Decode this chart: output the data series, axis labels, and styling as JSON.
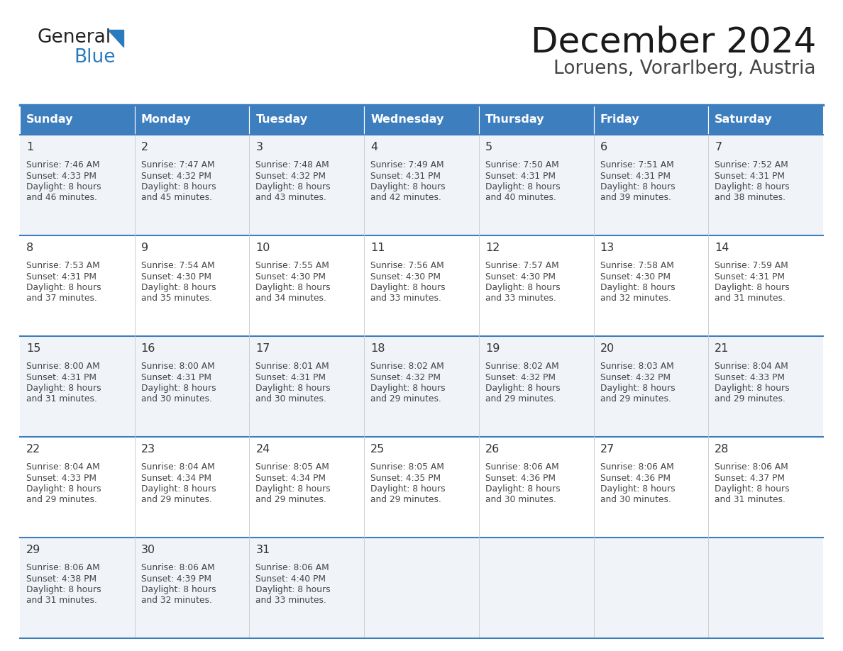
{
  "title": "December 2024",
  "subtitle": "Loruens, Vorarlberg, Austria",
  "header_bg": "#3d7ebf",
  "header_text": "#ffffff",
  "day_names": [
    "Sunday",
    "Monday",
    "Tuesday",
    "Wednesday",
    "Thursday",
    "Friday",
    "Saturday"
  ],
  "row_bg_light": "#f0f4f8",
  "row_bg_white": "#ffffff",
  "cell_border_color": "#3d7ebf",
  "text_color": "#444444",
  "logo_general_color": "#222222",
  "logo_blue_color": "#2a7abf",
  "weeks": [
    [
      {
        "day": 1,
        "sunrise": "7:46 AM",
        "sunset": "4:33 PM",
        "daylight": "8 hours and 46 minutes."
      },
      {
        "day": 2,
        "sunrise": "7:47 AM",
        "sunset": "4:32 PM",
        "daylight": "8 hours and 45 minutes."
      },
      {
        "day": 3,
        "sunrise": "7:48 AM",
        "sunset": "4:32 PM",
        "daylight": "8 hours and 43 minutes."
      },
      {
        "day": 4,
        "sunrise": "7:49 AM",
        "sunset": "4:31 PM",
        "daylight": "8 hours and 42 minutes."
      },
      {
        "day": 5,
        "sunrise": "7:50 AM",
        "sunset": "4:31 PM",
        "daylight": "8 hours and 40 minutes."
      },
      {
        "day": 6,
        "sunrise": "7:51 AM",
        "sunset": "4:31 PM",
        "daylight": "8 hours and 39 minutes."
      },
      {
        "day": 7,
        "sunrise": "7:52 AM",
        "sunset": "4:31 PM",
        "daylight": "8 hours and 38 minutes."
      }
    ],
    [
      {
        "day": 8,
        "sunrise": "7:53 AM",
        "sunset": "4:31 PM",
        "daylight": "8 hours and 37 minutes."
      },
      {
        "day": 9,
        "sunrise": "7:54 AM",
        "sunset": "4:30 PM",
        "daylight": "8 hours and 35 minutes."
      },
      {
        "day": 10,
        "sunrise": "7:55 AM",
        "sunset": "4:30 PM",
        "daylight": "8 hours and 34 minutes."
      },
      {
        "day": 11,
        "sunrise": "7:56 AM",
        "sunset": "4:30 PM",
        "daylight": "8 hours and 33 minutes."
      },
      {
        "day": 12,
        "sunrise": "7:57 AM",
        "sunset": "4:30 PM",
        "daylight": "8 hours and 33 minutes."
      },
      {
        "day": 13,
        "sunrise": "7:58 AM",
        "sunset": "4:30 PM",
        "daylight": "8 hours and 32 minutes."
      },
      {
        "day": 14,
        "sunrise": "7:59 AM",
        "sunset": "4:31 PM",
        "daylight": "8 hours and 31 minutes."
      }
    ],
    [
      {
        "day": 15,
        "sunrise": "8:00 AM",
        "sunset": "4:31 PM",
        "daylight": "8 hours and 31 minutes."
      },
      {
        "day": 16,
        "sunrise": "8:00 AM",
        "sunset": "4:31 PM",
        "daylight": "8 hours and 30 minutes."
      },
      {
        "day": 17,
        "sunrise": "8:01 AM",
        "sunset": "4:31 PM",
        "daylight": "8 hours and 30 minutes."
      },
      {
        "day": 18,
        "sunrise": "8:02 AM",
        "sunset": "4:32 PM",
        "daylight": "8 hours and 29 minutes."
      },
      {
        "day": 19,
        "sunrise": "8:02 AM",
        "sunset": "4:32 PM",
        "daylight": "8 hours and 29 minutes."
      },
      {
        "day": 20,
        "sunrise": "8:03 AM",
        "sunset": "4:32 PM",
        "daylight": "8 hours and 29 minutes."
      },
      {
        "day": 21,
        "sunrise": "8:04 AM",
        "sunset": "4:33 PM",
        "daylight": "8 hours and 29 minutes."
      }
    ],
    [
      {
        "day": 22,
        "sunrise": "8:04 AM",
        "sunset": "4:33 PM",
        "daylight": "8 hours and 29 minutes."
      },
      {
        "day": 23,
        "sunrise": "8:04 AM",
        "sunset": "4:34 PM",
        "daylight": "8 hours and 29 minutes."
      },
      {
        "day": 24,
        "sunrise": "8:05 AM",
        "sunset": "4:34 PM",
        "daylight": "8 hours and 29 minutes."
      },
      {
        "day": 25,
        "sunrise": "8:05 AM",
        "sunset": "4:35 PM",
        "daylight": "8 hours and 29 minutes."
      },
      {
        "day": 26,
        "sunrise": "8:06 AM",
        "sunset": "4:36 PM",
        "daylight": "8 hours and 30 minutes."
      },
      {
        "day": 27,
        "sunrise": "8:06 AM",
        "sunset": "4:36 PM",
        "daylight": "8 hours and 30 minutes."
      },
      {
        "day": 28,
        "sunrise": "8:06 AM",
        "sunset": "4:37 PM",
        "daylight": "8 hours and 31 minutes."
      }
    ],
    [
      {
        "day": 29,
        "sunrise": "8:06 AM",
        "sunset": "4:38 PM",
        "daylight": "8 hours and 31 minutes."
      },
      {
        "day": 30,
        "sunrise": "8:06 AM",
        "sunset": "4:39 PM",
        "daylight": "8 hours and 32 minutes."
      },
      {
        "day": 31,
        "sunrise": "8:06 AM",
        "sunset": "4:40 PM",
        "daylight": "8 hours and 33 minutes."
      },
      null,
      null,
      null,
      null
    ]
  ]
}
